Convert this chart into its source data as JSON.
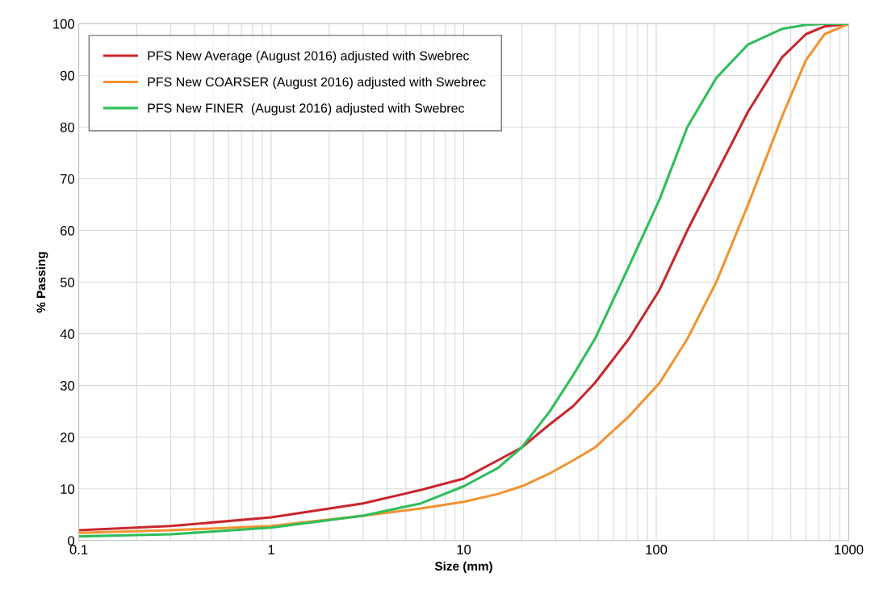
{
  "chart_data": {
    "type": "line",
    "xlabel": "Size (mm)",
    "ylabel": "% Passing",
    "log": "x",
    "grid": true,
    "legend": "top left",
    "x": [
      0.1,
      0.3,
      1,
      3,
      6,
      10,
      15,
      20,
      28,
      37,
      48,
      72,
      104,
      145,
      205,
      300,
      450,
      600,
      750,
      1000
    ],
    "xlim": [
      0.1,
      1000
    ],
    "xticks": [
      0.1,
      1,
      10,
      100,
      1000
    ],
    "ylim": [
      0,
      100
    ],
    "yticks": [
      0,
      10,
      20,
      30,
      40,
      50,
      60,
      70,
      80,
      90,
      100
    ],
    "series": [
      {
        "name": "PFS New Average (August 2016) adjusted with Swebrec",
        "color": "#c8262c",
        "values": [
          2.0,
          2.8,
          4.5,
          7.2,
          9.8,
          12,
          15.5,
          18,
          22.5,
          26,
          30.5,
          39,
          48.5,
          60,
          71,
          83,
          93.5,
          98,
          99.5,
          100
        ]
      },
      {
        "name": "PFS New COARSER (August 2016) adjusted with Swebrec",
        "color": "#f39230",
        "values": [
          1.5,
          2.0,
          2.8,
          4.8,
          6.2,
          7.5,
          9,
          10.5,
          13,
          15.5,
          18,
          24,
          30.5,
          39,
          50,
          65,
          82,
          93,
          98,
          100
        ]
      },
      {
        "name": "PFS New FINER  (August 2016) adjusted with Swebrec",
        "color": "#2dbe5a",
        "values": [
          0.8,
          1.2,
          2.5,
          4.8,
          7.2,
          10.5,
          14,
          18,
          25,
          32,
          39,
          53,
          66,
          80,
          89.5,
          96,
          99,
          99.8,
          100,
          100
        ]
      }
    ]
  }
}
